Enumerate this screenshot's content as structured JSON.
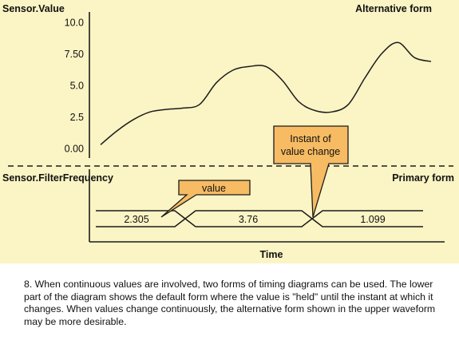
{
  "colors": {
    "background": "#fbf4c4",
    "callout_fill": "#f7bb63",
    "line": "#1b1b1b"
  },
  "labels": {
    "upper_signal": "Sensor.Value",
    "upper_form": "Alternative form",
    "lower_signal": "Sensor.FilterFrequency",
    "lower_form": "Primary form",
    "time_axis": "Time"
  },
  "callouts": {
    "value": "value",
    "instant_line1": "Instant of",
    "instant_line2": "value change"
  },
  "chart_data": {
    "type": "line",
    "yticks": [
      "10.0",
      "7.50",
      "5.0",
      "2.5",
      "0.00"
    ],
    "ylim": [
      0,
      10
    ],
    "x": [
      0,
      5,
      10,
      15,
      20,
      25,
      30,
      35,
      40,
      45,
      50,
      55,
      60,
      65,
      70,
      75,
      80,
      85,
      90,
      95,
      100
    ],
    "y": [
      0.3,
      1.4,
      2.3,
      2.9,
      3.1,
      3.2,
      3.5,
      5.2,
      6.2,
      6.5,
      6.5,
      5.4,
      3.7,
      3.0,
      2.9,
      3.5,
      5.6,
      7.5,
      8.4,
      7.2,
      6.9
    ],
    "segments": [
      {
        "value": "2.305"
      },
      {
        "value": "3.76"
      },
      {
        "value": "1.099"
      }
    ]
  },
  "caption": "8. When continuous values are involved, two forms of timing diagrams can be used. The lower part of the diagram shows the default form where the value is \"held\" until the instant at which it changes. When values change continuously, the alternative form shown in the upper waveform may be more desirable."
}
